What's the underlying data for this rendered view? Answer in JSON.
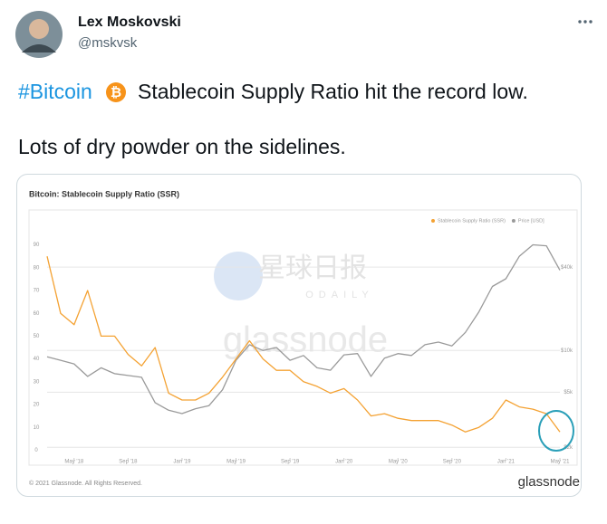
{
  "tweet": {
    "author": {
      "name": "Lex Moskovski",
      "handle": "@mskvsk"
    },
    "text": {
      "hashtag": "#Bitcoin",
      "line1": "Stablecoin Supply Ratio hit the record low.",
      "line2": "Lots of dry powder on the sidelines."
    }
  },
  "watermarks": [
    "星球日报",
    "ODAILY",
    "glassnode"
  ],
  "chart_data": {
    "type": "line",
    "title": "Bitcoin: Stablecoin Supply Ratio (SSR)",
    "footer": {
      "copyright": "© 2021 Glassnode. All Rights Reserved.",
      "brand": "glassnode"
    },
    "x": [
      "2018-03",
      "2018-04",
      "2018-05",
      "2018-06",
      "2018-07",
      "2018-08",
      "2018-09",
      "2018-10",
      "2018-11",
      "2018-12",
      "2019-01",
      "2019-02",
      "2019-03",
      "2019-04",
      "2019-05",
      "2019-06",
      "2019-07",
      "2019-08",
      "2019-09",
      "2019-10",
      "2019-11",
      "2019-12",
      "2020-01",
      "2020-02",
      "2020-03",
      "2020-04",
      "2020-05",
      "2020-06",
      "2020-07",
      "2020-08",
      "2020-09",
      "2020-10",
      "2020-11",
      "2020-12",
      "2021-01",
      "2021-02",
      "2021-03",
      "2021-04",
      "2021-05"
    ],
    "xlim": [
      "2018-03",
      "2021-05"
    ],
    "xticks": [
      {
        "value": "2018-05",
        "label": "May '18"
      },
      {
        "value": "2018-09",
        "label": "Sep '18"
      },
      {
        "value": "2019-01",
        "label": "Jan '19"
      },
      {
        "value": "2019-05",
        "label": "May '19"
      },
      {
        "value": "2019-09",
        "label": "Sep '19"
      },
      {
        "value": "2020-01",
        "label": "Jan '20"
      },
      {
        "value": "2020-05",
        "label": "May '20"
      },
      {
        "value": "2020-09",
        "label": "Sep '20"
      },
      {
        "value": "2021-01",
        "label": "Jan '21"
      },
      {
        "value": "2021-05",
        "label": "May '21"
      }
    ],
    "ylim": [
      -3,
      95
    ],
    "yticks": [
      0,
      10,
      20,
      30,
      40,
      50,
      60,
      70,
      80,
      90
    ],
    "y2lim": [
      1700,
      70000
    ],
    "y2scale": "log",
    "y2ticks": [
      {
        "value": 2000,
        "label": "$2k"
      },
      {
        "value": 5000,
        "label": "$5k"
      },
      {
        "value": 10000,
        "label": "$10k"
      },
      {
        "value": 40000,
        "label": "$40k"
      }
    ],
    "grid": true,
    "legend": "top-right",
    "series": [
      {
        "name": "Stablecoin Supply Ratio (SSR)",
        "color": "#f4a233",
        "values": [
          85,
          60,
          55,
          70,
          50,
          50,
          42,
          37,
          45,
          25,
          22,
          22,
          25,
          32,
          40,
          48,
          40,
          35,
          35,
          30,
          28,
          25,
          27,
          22,
          15,
          16,
          14,
          13,
          13,
          13,
          11,
          8,
          10,
          14,
          22,
          19,
          18,
          16,
          8
        ]
      },
      {
        "name": "Price [USD]",
        "color": "#9a9a9a",
        "axis": "y2",
        "values": [
          9000,
          8500,
          8000,
          6500,
          7500,
          6800,
          6600,
          6400,
          4200,
          3700,
          3500,
          3800,
          4000,
          5200,
          8500,
          11000,
          10000,
          10500,
          8500,
          9200,
          7500,
          7200,
          9300,
          9500,
          6500,
          8800,
          9500,
          9200,
          11000,
          11500,
          10800,
          13500,
          19000,
          29000,
          33000,
          48000,
          58000,
          57000,
          38000
        ]
      }
    ]
  }
}
